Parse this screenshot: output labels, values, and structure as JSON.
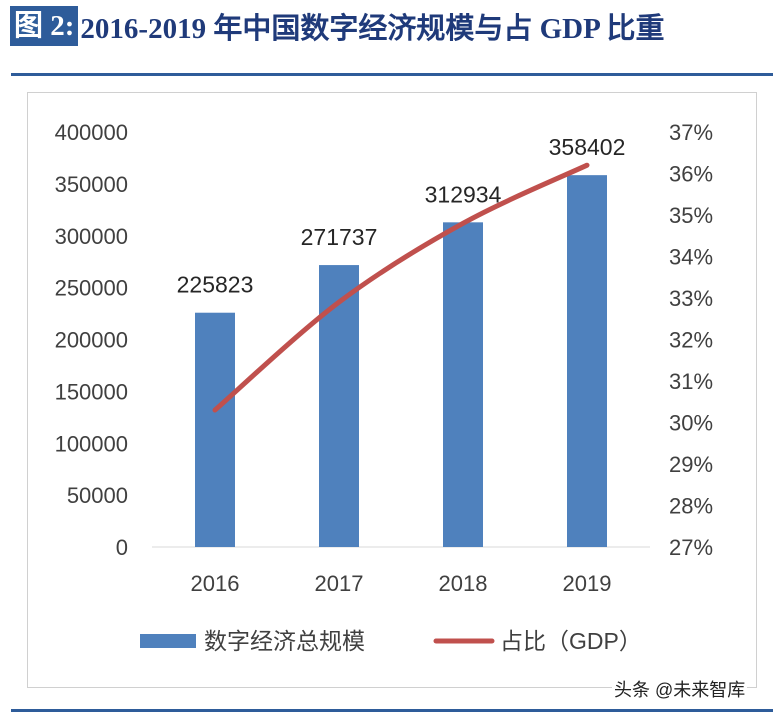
{
  "title": {
    "label": "图 2:",
    "text": "2016-2019 年中国数字经济规模与占 GDP 比重"
  },
  "watermark": "头条 @未来智库",
  "colors": {
    "bar": "#4f81bd",
    "line": "#c0504d",
    "title": "#1f3a7a",
    "accent": "#2e5c9a"
  },
  "chart_data": {
    "type": "bar+line",
    "categories": [
      "2016",
      "2017",
      "2018",
      "2019"
    ],
    "series": [
      {
        "name": "数字经济总规模",
        "type": "bar",
        "axis": "left",
        "values": [
          225823,
          271737,
          312934,
          358402
        ],
        "labels": [
          "225823",
          "271737",
          "312934",
          "358402"
        ]
      },
      {
        "name": "占比（GDP）",
        "type": "line",
        "axis": "right",
        "values": [
          30.3,
          32.9,
          34.8,
          36.2
        ]
      }
    ],
    "y_left": {
      "range": [
        0,
        400000
      ],
      "ticks": [
        "0",
        "50000",
        "100000",
        "150000",
        "200000",
        "250000",
        "300000",
        "350000",
        "400000"
      ]
    },
    "y_right": {
      "range": [
        27,
        37
      ],
      "ticks": [
        "27%",
        "28%",
        "29%",
        "30%",
        "31%",
        "32%",
        "33%",
        "34%",
        "35%",
        "36%",
        "37%"
      ]
    },
    "grid": false,
    "legend": "bottom"
  }
}
